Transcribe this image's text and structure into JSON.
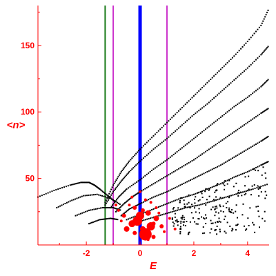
{
  "chart_data": {
    "type": "scatter",
    "title": "",
    "xlabel": "E",
    "ylabel": "<n>",
    "xlim": [
      -3.8,
      4.8
    ],
    "ylim": [
      0,
      180
    ],
    "xticks": [
      -2,
      0,
      2,
      4
    ],
    "yticks": [
      50,
      100,
      150
    ],
    "xtick_labels": [
      "-2",
      "0",
      "2",
      "4"
    ],
    "ytick_labels": [
      "50",
      "100",
      "150"
    ],
    "grid": false,
    "legend": "none",
    "colors": {
      "axes": "#ff0000",
      "background": "#ffffff",
      "black_series": "#000000",
      "red_series": "#ff0000",
      "line_green": "#1a7a1a",
      "line_magenta": "#cc33cc",
      "line_blue": "#0000ff"
    },
    "vertical_lines": [
      {
        "x": -1.3,
        "color": "#1a7a1a"
      },
      {
        "x": -1.0,
        "color": "#cc33cc"
      },
      {
        "x": 0.0,
        "color": "#0000ff",
        "thick": true
      },
      {
        "x": 1.0,
        "color": "#cc33cc"
      }
    ],
    "curves": [
      {
        "x": [
          -3.8,
          -3.2,
          -2.6,
          -2.2,
          -1.9,
          -1.7,
          -1.5,
          -1.2,
          -0.9
        ],
        "y": [
          36,
          41,
          45,
          47,
          47,
          45,
          42,
          37,
          32
        ]
      },
      {
        "x": [
          -3.1,
          -2.6,
          -2.1,
          -1.6,
          -1.1,
          -0.7
        ],
        "y": [
          28,
          33,
          37,
          38,
          35,
          30
        ]
      },
      {
        "x": [
          -2.4,
          -1.9,
          -1.4,
          -1.0,
          -0.7
        ],
        "y": [
          22,
          26,
          28,
          28,
          26
        ]
      },
      {
        "x": [
          -1.9,
          -1.5,
          -1.1,
          -0.8
        ],
        "y": [
          16,
          19,
          20,
          19
        ]
      },
      {
        "x": [
          -1.3,
          -1.0,
          -0.7,
          -0.4,
          0.0,
          0.5,
          1.0,
          1.5,
          2.0,
          2.5,
          3.0,
          3.5,
          4.0,
          4.5,
          4.8
        ],
        "y": [
          32,
          45,
          55,
          63,
          72,
          82,
          92,
          102,
          112,
          122,
          132,
          142,
          153,
          165,
          178
        ]
      },
      {
        "x": [
          -1.3,
          -1.0,
          -0.7,
          -0.4,
          0.0,
          0.5,
          1.0,
          1.5,
          2.0,
          2.5,
          3.0,
          3.5,
          4.0,
          4.5,
          4.8
        ],
        "y": [
          30,
          40,
          48,
          55,
          63,
          72,
          80,
          89,
          98,
          106,
          115,
          124,
          133,
          143,
          150
        ]
      },
      {
        "x": [
          -1.1,
          -0.8,
          -0.5,
          0.0,
          0.5,
          1.0,
          1.5,
          2.0,
          2.5,
          3.0,
          3.5,
          4.0,
          4.5,
          4.8
        ],
        "y": [
          28,
          36,
          42,
          49,
          57,
          64,
          72,
          80,
          88,
          96,
          104,
          111,
          119,
          125
        ]
      },
      {
        "x": [
          -0.9,
          -0.6,
          -0.3,
          0.0,
          0.5,
          1.0,
          1.5,
          2.0,
          2.5,
          3.0,
          3.5,
          4.0,
          4.5,
          4.8
        ],
        "y": [
          25,
          31,
          36,
          40,
          46,
          52,
          58,
          64,
          71,
          78,
          85,
          92,
          99,
          103
        ]
      },
      {
        "x": [
          -0.7,
          -0.4,
          0.0,
          0.5,
          1.0,
          1.5,
          2.0,
          2.5,
          3.0,
          3.5,
          4.0,
          4.5,
          4.8
        ],
        "y": [
          22,
          27,
          31,
          36,
          40,
          45,
          50,
          55,
          60,
          66,
          72,
          78,
          82
        ]
      },
      {
        "x": [
          -0.5,
          0.0,
          0.5,
          1.0,
          1.5,
          2.0,
          2.5,
          3.0,
          3.5,
          4.0,
          4.5,
          4.8
        ],
        "y": [
          19,
          23,
          27,
          31,
          35,
          38,
          42,
          46,
          51,
          55,
          60,
          63
        ]
      },
      {
        "x": [
          -0.3,
          0.2,
          0.7,
          1.2,
          1.7,
          2.2,
          2.7,
          3.2,
          3.7,
          4.2,
          4.8
        ],
        "y": [
          16,
          19,
          22,
          25,
          28,
          30,
          33,
          36,
          39,
          42,
          46
        ]
      }
    ],
    "red_points": {
      "x": [
        0.2,
        -0.1,
        0.4,
        0.0,
        -0.3,
        0.3,
        -0.5,
        0.6,
        -0.2,
        0.1,
        0.5,
        -0.6,
        0.8,
        -0.4,
        0.2,
        0.0,
        -0.8,
        0.9,
        1.1,
        -0.2,
        0.4,
        0.6,
        -0.7,
        0.3,
        0.1,
        -0.9,
        0.7,
        1.3,
        -0.3,
        0.5
      ],
      "y": [
        8,
        18,
        14,
        22,
        16,
        24,
        12,
        20,
        28,
        12,
        6,
        22,
        14,
        30,
        34,
        40,
        26,
        10,
        20,
        9,
        32,
        28,
        18,
        4,
        26,
        30,
        24,
        12,
        36,
        16
      ],
      "sizes": [
        9,
        7,
        6,
        6,
        5,
        4,
        4,
        4,
        3,
        4,
        3,
        3,
        3,
        2,
        2,
        2,
        2,
        2,
        2,
        3,
        2,
        2,
        2,
        2,
        3,
        2,
        2,
        2,
        2,
        3
      ]
    }
  }
}
